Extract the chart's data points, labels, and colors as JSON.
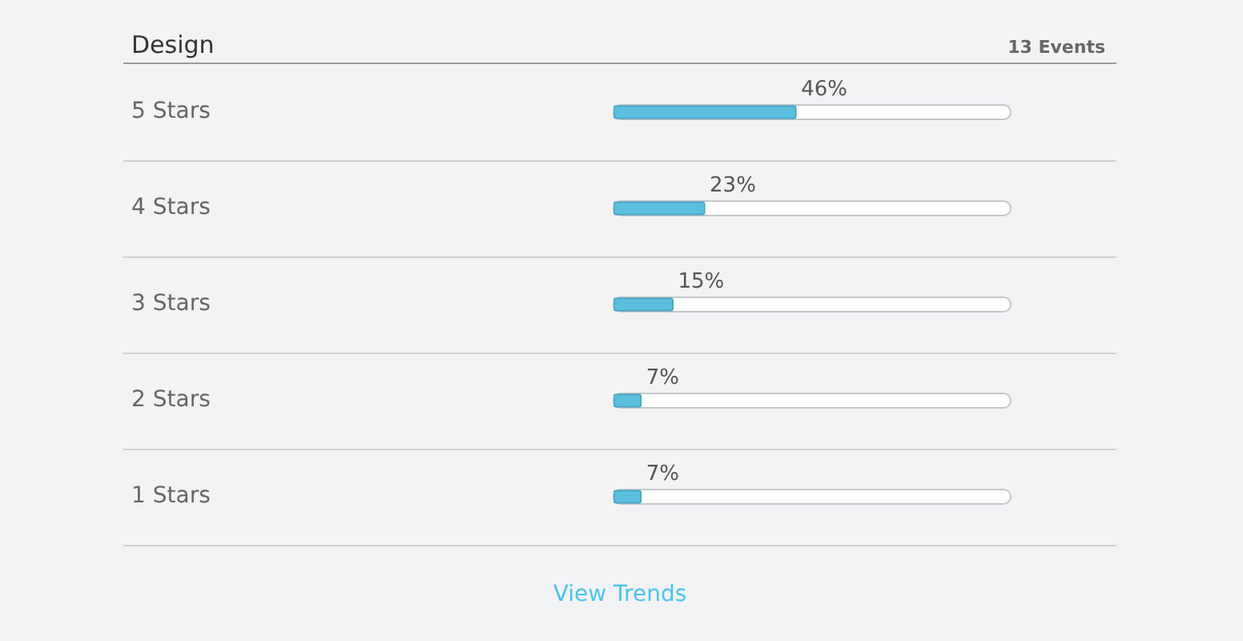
{
  "chart_data": {
    "type": "bar",
    "orientation": "horizontal",
    "title": "Design",
    "annotations": [
      "13 Events",
      "View Trends"
    ],
    "categories": [
      "5 Stars",
      "4 Stars",
      "3 Stars",
      "2 Stars",
      "1 Stars"
    ],
    "values": [
      46,
      23,
      15,
      7,
      7
    ],
    "value_labels": [
      "46%",
      "23%",
      "15%",
      "7%",
      "7%"
    ],
    "color": "#5bc0de",
    "xlim": [
      0,
      100
    ],
    "tick_labels": "y"
  }
}
